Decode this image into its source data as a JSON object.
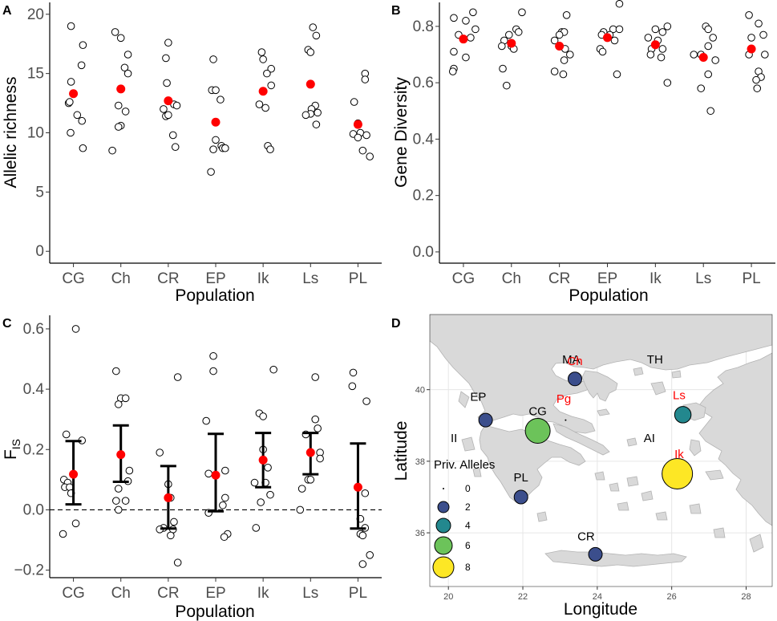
{
  "colors": {
    "mean": "#ff0000",
    "land": "#d9d9d9",
    "land_stroke": "#b3b3b3",
    "grid": "#e6e6e6",
    "axis": "#000000",
    "red_label": "#ff0000",
    "legend_fills": [
      "#000000",
      "#3b4e8c",
      "#23888e",
      "#6cc35a",
      "#fde725"
    ]
  },
  "chart_data": [
    {
      "panel": "A",
      "type": "scatter",
      "xlabel": "Population",
      "ylabel": "Allelic richness",
      "categories": [
        "CG",
        "Ch",
        "CR",
        "EP",
        "Ik",
        "Ls",
        "PL"
      ],
      "ylim": [
        -1,
        21
      ],
      "yticks": [
        0,
        5,
        10,
        15,
        20
      ],
      "points": [
        [
          [
            -0.05,
            19.0
          ],
          [
            0.2,
            17.4
          ],
          [
            0.17,
            15.7
          ],
          [
            -0.05,
            14.3
          ],
          [
            -0.1,
            12.5
          ],
          [
            0.08,
            11.5
          ],
          [
            -0.08,
            12.6
          ],
          [
            0.18,
            11.0
          ],
          [
            -0.06,
            10.0
          ],
          [
            0.2,
            8.7
          ]
        ],
        [
          [
            -0.12,
            18.5
          ],
          [
            0.0,
            18.0
          ],
          [
            0.15,
            16.6
          ],
          [
            0.08,
            15.5
          ],
          [
            0.15,
            15.0
          ],
          [
            -0.05,
            12.3
          ],
          [
            0.1,
            11.8
          ],
          [
            0.0,
            10.6
          ],
          [
            -0.05,
            10.5
          ],
          [
            -0.18,
            8.5
          ]
        ],
        [
          [
            0.0,
            17.6
          ],
          [
            -0.05,
            16.3
          ],
          [
            -0.03,
            14.2
          ],
          [
            -0.1,
            12.0
          ],
          [
            0.12,
            12.4
          ],
          [
            0.18,
            12.3
          ],
          [
            -0.05,
            11.4
          ],
          [
            0.0,
            11.5
          ],
          [
            0.1,
            9.8
          ],
          [
            0.15,
            8.8
          ]
        ],
        [
          [
            -0.05,
            16.2
          ],
          [
            -0.08,
            13.6
          ],
          [
            0.0,
            13.6
          ],
          [
            0.1,
            12.8
          ],
          [
            0.0,
            9.4
          ],
          [
            0.12,
            8.9
          ],
          [
            0.15,
            8.7
          ],
          [
            0.2,
            8.7
          ],
          [
            -0.05,
            8.6
          ],
          [
            -0.1,
            6.7
          ]
        ],
        [
          [
            -0.03,
            16.8
          ],
          [
            0.0,
            16.2
          ],
          [
            0.17,
            15.4
          ],
          [
            0.08,
            15.0
          ],
          [
            0.17,
            14.0
          ],
          [
            0.0,
            13.5
          ],
          [
            -0.08,
            12.4
          ],
          [
            0.05,
            12.1
          ],
          [
            0.1,
            8.9
          ],
          [
            0.15,
            8.6
          ]
        ],
        [
          [
            0.05,
            18.9
          ],
          [
            0.12,
            18.2
          ],
          [
            -0.05,
            17.0
          ],
          [
            0.0,
            16.8
          ],
          [
            0.1,
            12.3
          ],
          [
            0.02,
            12.0
          ],
          [
            0.15,
            11.7
          ],
          [
            0.0,
            11.6
          ],
          [
            -0.1,
            11.5
          ],
          [
            0.12,
            10.7
          ]
        ],
        [
          [
            0.15,
            15.0
          ],
          [
            0.15,
            14.5
          ],
          [
            -0.08,
            12.6
          ],
          [
            0.0,
            10.8
          ],
          [
            0.05,
            10.0
          ],
          [
            -0.1,
            9.9
          ],
          [
            0.18,
            9.8
          ],
          [
            0.0,
            9.6
          ],
          [
            0.1,
            8.5
          ],
          [
            0.25,
            8.0
          ]
        ]
      ],
      "means": [
        13.3,
        13.7,
        12.7,
        10.9,
        13.5,
        14.1,
        10.7
      ]
    },
    {
      "panel": "B",
      "type": "scatter",
      "xlabel": "Population",
      "ylabel": "Gene Diversity",
      "categories": [
        "CG",
        "Ch",
        "CR",
        "EP",
        "Ik",
        "Ls",
        "PL"
      ],
      "ylim": [
        -0.04,
        0.885
      ],
      "yticks": [
        0.0,
        0.2,
        0.4,
        0.6,
        0.8
      ],
      "tick_labels": [
        "0.0",
        "0.2",
        "0.4",
        "0.6",
        "0.8"
      ],
      "points": [
        [
          [
            -0.2,
            0.83
          ],
          [
            0.2,
            0.85
          ],
          [
            0.05,
            0.82
          ],
          [
            0.25,
            0.79
          ],
          [
            -0.1,
            0.77
          ],
          [
            0.15,
            0.76
          ],
          [
            -0.2,
            0.71
          ],
          [
            0.05,
            0.69
          ],
          [
            -0.2,
            0.65
          ],
          [
            -0.22,
            0.64
          ]
        ],
        [
          [
            0.22,
            0.85
          ],
          [
            0.1,
            0.79
          ],
          [
            -0.05,
            0.77
          ],
          [
            0.15,
            0.78
          ],
          [
            -0.15,
            0.75
          ],
          [
            0.0,
            0.73
          ],
          [
            -0.2,
            0.73
          ],
          [
            0.05,
            0.72
          ],
          [
            -0.18,
            0.65
          ],
          [
            -0.1,
            0.59
          ]
        ],
        [
          [
            0.15,
            0.84
          ],
          [
            0.05,
            0.78
          ],
          [
            0.1,
            0.78
          ],
          [
            0.0,
            0.77
          ],
          [
            -0.1,
            0.75
          ],
          [
            0.12,
            0.72
          ],
          [
            0.22,
            0.7
          ],
          [
            0.1,
            0.68
          ],
          [
            -0.1,
            0.64
          ],
          [
            0.08,
            0.63
          ]
        ],
        [
          [
            0.25,
            0.88
          ],
          [
            -0.08,
            0.78
          ],
          [
            0.12,
            0.79
          ],
          [
            0.25,
            0.79
          ],
          [
            0.05,
            0.77
          ],
          [
            -0.12,
            0.77
          ],
          [
            0.15,
            0.75
          ],
          [
            -0.15,
            0.72
          ],
          [
            -0.1,
            0.71
          ],
          [
            0.2,
            0.63
          ]
        ],
        [
          [
            0.25,
            0.8
          ],
          [
            0.0,
            0.79
          ],
          [
            0.15,
            0.78
          ],
          [
            -0.15,
            0.76
          ],
          [
            0.05,
            0.75
          ],
          [
            -0.08,
            0.72
          ],
          [
            0.15,
            0.72
          ],
          [
            -0.1,
            0.7
          ],
          [
            0.12,
            0.69
          ],
          [
            0.25,
            0.6
          ]
        ],
        [
          [
            0.05,
            0.8
          ],
          [
            0.1,
            0.79
          ],
          [
            0.2,
            0.76
          ],
          [
            0.1,
            0.73
          ],
          [
            -0.05,
            0.7
          ],
          [
            -0.2,
            0.7
          ],
          [
            0.25,
            0.68
          ],
          [
            0.1,
            0.63
          ],
          [
            -0.05,
            0.58
          ],
          [
            0.15,
            0.5
          ]
        ],
        [
          [
            -0.05,
            0.84
          ],
          [
            0.15,
            0.81
          ],
          [
            0.0,
            0.76
          ],
          [
            0.25,
            0.77
          ],
          [
            0.28,
            0.7
          ],
          [
            -0.05,
            0.7
          ],
          [
            0.15,
            0.64
          ],
          [
            0.2,
            0.62
          ],
          [
            0.1,
            0.61
          ],
          [
            0.12,
            0.58
          ]
        ]
      ],
      "means": [
        0.755,
        0.74,
        0.73,
        0.76,
        0.735,
        0.69,
        0.72
      ]
    },
    {
      "panel": "C",
      "type": "scatter",
      "xlabel": "Population",
      "ylabel": "F",
      "ylabel_sub": "IS",
      "categories": [
        "CG",
        "Ch",
        "CR",
        "EP",
        "Ik",
        "Ls",
        "PL"
      ],
      "ylim": [
        -0.225,
        0.645
      ],
      "yticks": [
        -0.2,
        0.0,
        0.2,
        0.4,
        0.6
      ],
      "tick_labels": [
        "−0.2",
        "0.0",
        "0.2",
        "0.4",
        "0.6"
      ],
      "reference_line": 0.0,
      "points": [
        [
          [
            0.05,
            0.6
          ],
          [
            -0.15,
            0.25
          ],
          [
            0.18,
            0.23
          ],
          [
            -0.2,
            0.1
          ],
          [
            -0.12,
            0.09
          ],
          [
            -0.18,
            0.075
          ],
          [
            -0.08,
            0.075
          ],
          [
            -0.05,
            0.055
          ],
          [
            0.05,
            -0.045
          ],
          [
            -0.22,
            -0.08
          ]
        ],
        [
          [
            -0.1,
            0.46
          ],
          [
            0.0,
            0.37
          ],
          [
            0.1,
            0.37
          ],
          [
            -0.05,
            0.35
          ],
          [
            0.18,
            0.13
          ],
          [
            0.15,
            0.095
          ],
          [
            -0.05,
            0.07
          ],
          [
            -0.1,
            0.03
          ],
          [
            0.1,
            0.03
          ],
          [
            -0.05,
            0.0
          ]
        ],
        [
          [
            0.2,
            0.44
          ],
          [
            -0.18,
            0.19
          ],
          [
            0.0,
            0.085
          ],
          [
            0.05,
            0.04
          ],
          [
            0.12,
            -0.04
          ],
          [
            -0.1,
            -0.06
          ],
          [
            -0.18,
            -0.065
          ],
          [
            0.1,
            -0.065
          ],
          [
            0.05,
            -0.085
          ],
          [
            0.2,
            -0.175
          ]
        ],
        [
          [
            -0.05,
            0.51
          ],
          [
            -0.05,
            0.46
          ],
          [
            -0.2,
            0.295
          ],
          [
            0.2,
            0.13
          ],
          [
            -0.15,
            0.12
          ],
          [
            0.2,
            0.04
          ],
          [
            0.15,
            0.015
          ],
          [
            -0.15,
            -0.01
          ],
          [
            0.25,
            -0.08
          ],
          [
            0.18,
            -0.09
          ]
        ],
        [
          [
            0.22,
            0.465
          ],
          [
            -0.08,
            0.32
          ],
          [
            0.0,
            0.31
          ],
          [
            0.0,
            0.2
          ],
          [
            0.1,
            0.14
          ],
          [
            -0.18,
            0.09
          ],
          [
            0.05,
            0.09
          ],
          [
            0.15,
            0.05
          ],
          [
            -0.05,
            0.025
          ],
          [
            -0.15,
            -0.06
          ]
        ],
        [
          [
            0.1,
            0.44
          ],
          [
            0.1,
            0.3
          ],
          [
            0.15,
            0.27
          ],
          [
            -0.1,
            0.25
          ],
          [
            0.2,
            0.19
          ],
          [
            0.2,
            0.17
          ],
          [
            -0.05,
            0.1
          ],
          [
            0.0,
            0.1
          ],
          [
            -0.18,
            0.07
          ],
          [
            -0.22,
            0.0
          ]
        ],
        [
          [
            -0.1,
            0.455
          ],
          [
            -0.12,
            0.41
          ],
          [
            0.18,
            0.36
          ],
          [
            0.15,
            0.055
          ],
          [
            0.05,
            -0.03
          ],
          [
            0.15,
            -0.06
          ],
          [
            0.05,
            -0.08
          ],
          [
            0.1,
            -0.085
          ],
          [
            0.1,
            -0.18
          ],
          [
            0.25,
            -0.15
          ]
        ]
      ],
      "means": [
        0.118,
        0.183,
        0.04,
        0.115,
        0.165,
        0.19,
        0.075
      ],
      "error_lower": [
        0.018,
        0.093,
        -0.062,
        -0.005,
        0.075,
        0.118,
        -0.062
      ],
      "error_upper": [
        0.228,
        0.28,
        0.145,
        0.252,
        0.255,
        0.255,
        0.22
      ]
    },
    {
      "panel": "D",
      "type": "map",
      "xlabel": "Longitude",
      "ylabel": "Latitude",
      "xlim": [
        19.5,
        28.7
      ],
      "ylim": [
        34.5,
        42.1
      ],
      "xticks": [
        20,
        22,
        24,
        26,
        28
      ],
      "yticks": [
        36,
        38,
        40
      ],
      "legend_title": "Priv. Alleles",
      "legend_values": [
        0,
        2,
        4,
        6,
        8
      ],
      "regions": [
        {
          "name": "MA",
          "lon": 23.3,
          "lat": 40.85
        },
        {
          "name": "TH",
          "lon": 25.55,
          "lat": 40.85
        },
        {
          "name": "II",
          "lon": 20.15,
          "lat": 38.65
        },
        {
          "name": "AI",
          "lon": 25.4,
          "lat": 38.65
        }
      ],
      "sites": [
        {
          "name": "Ch",
          "lon": 23.4,
          "lat": 40.3,
          "alleles": 2,
          "label_lon": 23.4,
          "label_lat": 40.8,
          "red": true
        },
        {
          "name": "EP",
          "lon": 21.0,
          "lat": 39.15,
          "alleles": 2,
          "label_lon": 20.8,
          "label_lat": 39.8,
          "red": false
        },
        {
          "name": "Pg",
          "lon": 23.15,
          "lat": 39.15,
          "alleles": 0,
          "label_lon": 23.1,
          "label_lat": 39.75,
          "red": true
        },
        {
          "name": "CG",
          "lon": 22.4,
          "lat": 38.85,
          "alleles": 6,
          "label_lon": 22.4,
          "label_lat": 39.4,
          "red": false
        },
        {
          "name": "Ls",
          "lon": 26.3,
          "lat": 39.3,
          "alleles": 3,
          "label_lon": 26.2,
          "label_lat": 39.85,
          "red": true
        },
        {
          "name": "Ik",
          "lon": 26.15,
          "lat": 37.65,
          "alleles": 8,
          "label_lon": 26.2,
          "label_lat": 38.2,
          "red": true
        },
        {
          "name": "PL",
          "lon": 21.95,
          "lat": 37.0,
          "alleles": 2,
          "label_lon": 21.95,
          "label_lat": 37.55,
          "red": false
        },
        {
          "name": "CR",
          "lon": 23.95,
          "lat": 35.4,
          "alleles": 2,
          "label_lon": 23.7,
          "label_lat": 35.9,
          "red": false
        }
      ]
    }
  ]
}
